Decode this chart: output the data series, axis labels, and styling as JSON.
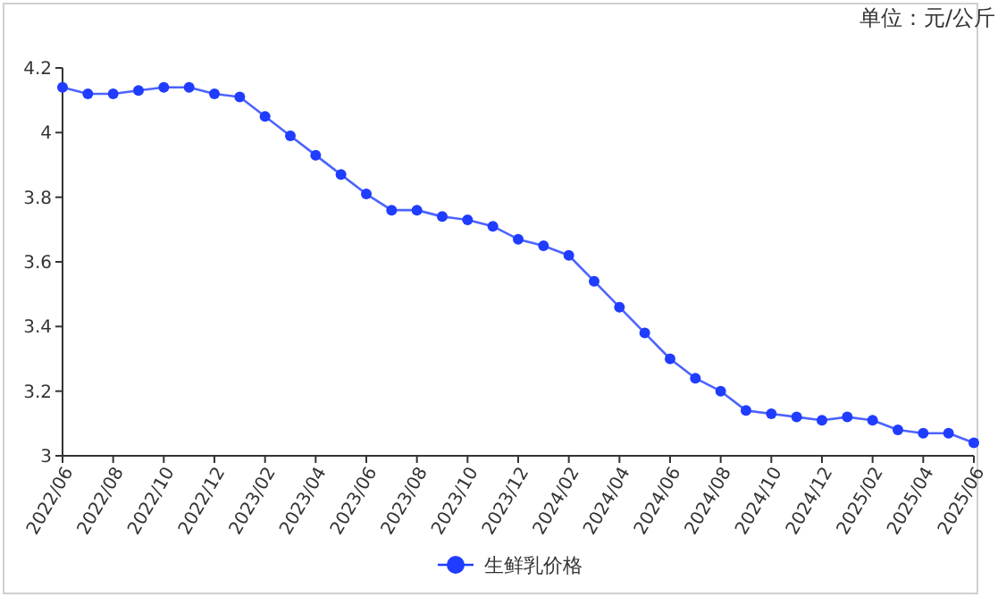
{
  "chart_data": {
    "type": "line",
    "categories": [
      "2022/06",
      null,
      "2022/08",
      null,
      "2022/10",
      null,
      "2022/12",
      null,
      "2023/02",
      null,
      "2023/04",
      null,
      "2023/06",
      null,
      "2023/08",
      null,
      "2023/10",
      null,
      "2023/12",
      null,
      "2024/02",
      null,
      "2024/04",
      null,
      "2024/06",
      null,
      "2024/08",
      null,
      "2024/10",
      null,
      "2024/12",
      null,
      "2025/02",
      null,
      "2025/04",
      null,
      "2025/06"
    ],
    "series": [
      {
        "name": "生鲜乳价格",
        "color": "#1f3cff",
        "values": [
          4.14,
          4.12,
          4.12,
          4.13,
          4.14,
          4.14,
          4.12,
          4.11,
          4.05,
          3.99,
          3.93,
          3.87,
          3.81,
          3.76,
          3.76,
          3.74,
          3.73,
          3.71,
          3.67,
          3.65,
          3.62,
          3.54,
          3.46,
          3.38,
          3.3,
          3.24,
          3.2,
          3.14,
          3.13,
          3.12,
          3.11,
          3.12,
          3.11,
          3.08,
          3.07,
          3.07,
          3.04
        ]
      }
    ],
    "ylim": [
      3,
      4.2
    ],
    "yticks": [
      3,
      3.2,
      3.4,
      3.6,
      3.8,
      4,
      4.2
    ],
    "annotations": [
      "单位：元/公斤"
    ],
    "legend": "bottom",
    "marker": "circle",
    "line_style": "solid",
    "grid": false
  }
}
